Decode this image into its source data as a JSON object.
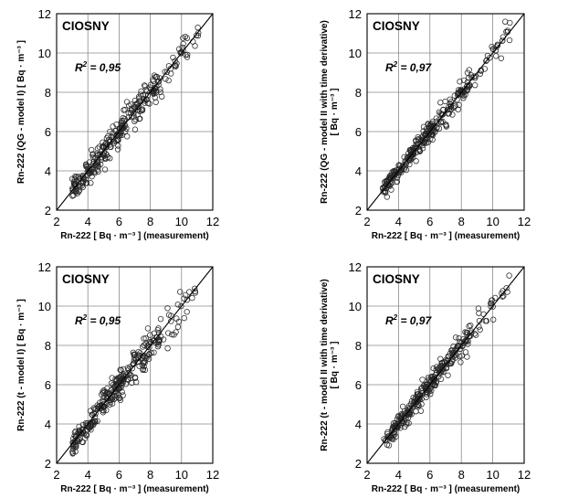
{
  "chart_data": [
    {
      "type": "scatter",
      "station": "CIOSNY",
      "annotation_prefix": "R",
      "annotation_value": "= 0,95",
      "xlabel": "Rn-222 [ Bq · m⁻³ ] (measurement)",
      "ylabel": [
        "Rn-222 (QG - model I)  [ Bq · m⁻³ ]"
      ],
      "xlim": [
        2,
        12
      ],
      "ylim": [
        2,
        12
      ],
      "xticks": [
        "2",
        "4",
        "6",
        "8",
        "10",
        "12"
      ],
      "yticks": [
        "2",
        "4",
        "6",
        "8",
        "10",
        "12"
      ],
      "grid": true,
      "reference_line": "1:1",
      "noise": 0.34,
      "seed": 11
    },
    {
      "type": "scatter",
      "station": "CIOSNY",
      "annotation_prefix": "R",
      "annotation_value": "= 0,97",
      "xlabel": "Rn-222 [ Bq · m⁻³ ] (measurement)",
      "ylabel": [
        "Rn-222 (QG - model II  with time derivative)",
        "[ Bq · m⁻³ ]"
      ],
      "xlim": [
        2,
        12
      ],
      "ylim": [
        2,
        12
      ],
      "xticks": [
        "2",
        "4",
        "6",
        "8",
        "10",
        "12"
      ],
      "yticks": [
        "2",
        "4",
        "6",
        "8",
        "10",
        "12"
      ],
      "grid": true,
      "reference_line": "1:1",
      "noise": 0.24,
      "seed": 23
    },
    {
      "type": "scatter",
      "station": "CIOSNY",
      "annotation_prefix": "R",
      "annotation_value": "= 0,95",
      "xlabel": "Rn-222 [ Bq · m⁻³ ] (measurement)",
      "ylabel": [
        "Rn-222 (t - model I)  [ Bq · m⁻³ ]"
      ],
      "xlim": [
        2,
        12
      ],
      "ylim": [
        2,
        12
      ],
      "xticks": [
        "2",
        "4",
        "6",
        "8",
        "10",
        "12"
      ],
      "yticks": [
        "2",
        "4",
        "6",
        "8",
        "10",
        "12"
      ],
      "grid": true,
      "reference_line": "1:1",
      "noise": 0.36,
      "seed": 37
    },
    {
      "type": "scatter",
      "station": "CIOSNY",
      "annotation_prefix": "R",
      "annotation_value": "= 0,97",
      "xlabel": "Rn-222 [ Bq · m⁻³ ] (measurement)",
      "ylabel": [
        "Rn-222 (t - model II  with time derivative)",
        "[ Bq · m⁻³ ]"
      ],
      "xlim": [
        2,
        12
      ],
      "ylim": [
        2,
        12
      ],
      "xticks": [
        "2",
        "4",
        "6",
        "8",
        "10",
        "12"
      ],
      "yticks": [
        "2",
        "4",
        "6",
        "8",
        "10",
        "12"
      ],
      "grid": true,
      "reference_line": "1:1",
      "noise": 0.26,
      "seed": 53
    }
  ]
}
